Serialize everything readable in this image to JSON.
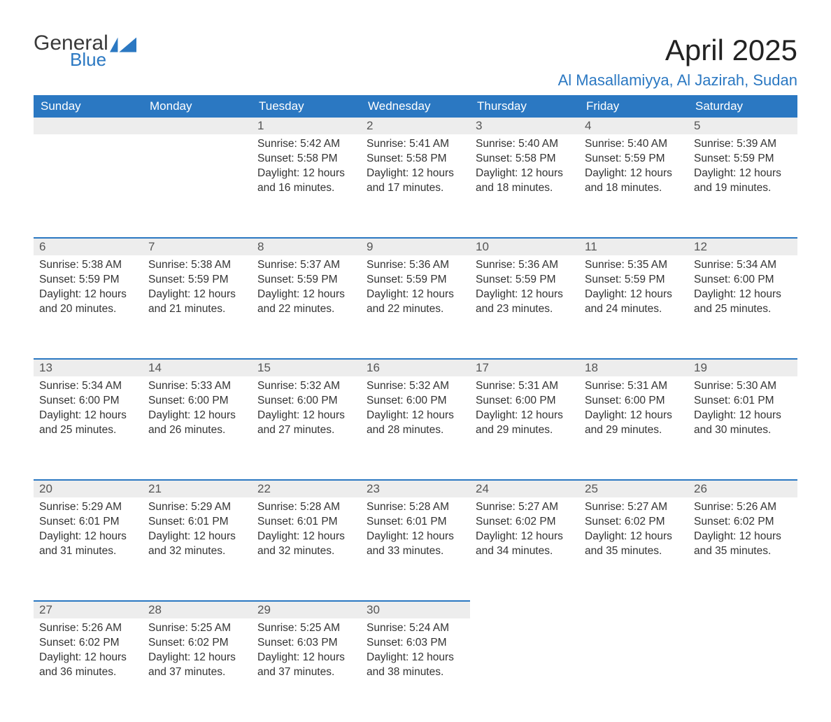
{
  "logo": {
    "word1": "General",
    "word2": "Blue"
  },
  "title": "April 2025",
  "location": "Al Masallamiyya, Al Jazirah, Sudan",
  "colors": {
    "brand_blue": "#2b78c2",
    "header_text": "#ffffff",
    "daynum_bg": "#ededed",
    "body_text": "#333333",
    "title_text": "#222222"
  },
  "weekdays": [
    "Sunday",
    "Monday",
    "Tuesday",
    "Wednesday",
    "Thursday",
    "Friday",
    "Saturday"
  ],
  "weeks": [
    [
      null,
      null,
      {
        "n": "1",
        "sr": "5:42 AM",
        "ss": "5:58 PM",
        "dl": "12 hours and 16 minutes."
      },
      {
        "n": "2",
        "sr": "5:41 AM",
        "ss": "5:58 PM",
        "dl": "12 hours and 17 minutes."
      },
      {
        "n": "3",
        "sr": "5:40 AM",
        "ss": "5:58 PM",
        "dl": "12 hours and 18 minutes."
      },
      {
        "n": "4",
        "sr": "5:40 AM",
        "ss": "5:59 PM",
        "dl": "12 hours and 18 minutes."
      },
      {
        "n": "5",
        "sr": "5:39 AM",
        "ss": "5:59 PM",
        "dl": "12 hours and 19 minutes."
      }
    ],
    [
      {
        "n": "6",
        "sr": "5:38 AM",
        "ss": "5:59 PM",
        "dl": "12 hours and 20 minutes."
      },
      {
        "n": "7",
        "sr": "5:38 AM",
        "ss": "5:59 PM",
        "dl": "12 hours and 21 minutes."
      },
      {
        "n": "8",
        "sr": "5:37 AM",
        "ss": "5:59 PM",
        "dl": "12 hours and 22 minutes."
      },
      {
        "n": "9",
        "sr": "5:36 AM",
        "ss": "5:59 PM",
        "dl": "12 hours and 22 minutes."
      },
      {
        "n": "10",
        "sr": "5:36 AM",
        "ss": "5:59 PM",
        "dl": "12 hours and 23 minutes."
      },
      {
        "n": "11",
        "sr": "5:35 AM",
        "ss": "5:59 PM",
        "dl": "12 hours and 24 minutes."
      },
      {
        "n": "12",
        "sr": "5:34 AM",
        "ss": "6:00 PM",
        "dl": "12 hours and 25 minutes."
      }
    ],
    [
      {
        "n": "13",
        "sr": "5:34 AM",
        "ss": "6:00 PM",
        "dl": "12 hours and 25 minutes."
      },
      {
        "n": "14",
        "sr": "5:33 AM",
        "ss": "6:00 PM",
        "dl": "12 hours and 26 minutes."
      },
      {
        "n": "15",
        "sr": "5:32 AM",
        "ss": "6:00 PM",
        "dl": "12 hours and 27 minutes."
      },
      {
        "n": "16",
        "sr": "5:32 AM",
        "ss": "6:00 PM",
        "dl": "12 hours and 28 minutes."
      },
      {
        "n": "17",
        "sr": "5:31 AM",
        "ss": "6:00 PM",
        "dl": "12 hours and 29 minutes."
      },
      {
        "n": "18",
        "sr": "5:31 AM",
        "ss": "6:00 PM",
        "dl": "12 hours and 29 minutes."
      },
      {
        "n": "19",
        "sr": "5:30 AM",
        "ss": "6:01 PM",
        "dl": "12 hours and 30 minutes."
      }
    ],
    [
      {
        "n": "20",
        "sr": "5:29 AM",
        "ss": "6:01 PM",
        "dl": "12 hours and 31 minutes."
      },
      {
        "n": "21",
        "sr": "5:29 AM",
        "ss": "6:01 PM",
        "dl": "12 hours and 32 minutes."
      },
      {
        "n": "22",
        "sr": "5:28 AM",
        "ss": "6:01 PM",
        "dl": "12 hours and 32 minutes."
      },
      {
        "n": "23",
        "sr": "5:28 AM",
        "ss": "6:01 PM",
        "dl": "12 hours and 33 minutes."
      },
      {
        "n": "24",
        "sr": "5:27 AM",
        "ss": "6:02 PM",
        "dl": "12 hours and 34 minutes."
      },
      {
        "n": "25",
        "sr": "5:27 AM",
        "ss": "6:02 PM",
        "dl": "12 hours and 35 minutes."
      },
      {
        "n": "26",
        "sr": "5:26 AM",
        "ss": "6:02 PM",
        "dl": "12 hours and 35 minutes."
      }
    ],
    [
      {
        "n": "27",
        "sr": "5:26 AM",
        "ss": "6:02 PM",
        "dl": "12 hours and 36 minutes."
      },
      {
        "n": "28",
        "sr": "5:25 AM",
        "ss": "6:02 PM",
        "dl": "12 hours and 37 minutes."
      },
      {
        "n": "29",
        "sr": "5:25 AM",
        "ss": "6:03 PM",
        "dl": "12 hours and 37 minutes."
      },
      {
        "n": "30",
        "sr": "5:24 AM",
        "ss": "6:03 PM",
        "dl": "12 hours and 38 minutes."
      },
      null,
      null,
      null
    ]
  ],
  "labels": {
    "sunrise": "Sunrise:",
    "sunset": "Sunset:",
    "daylight": "Daylight:"
  }
}
